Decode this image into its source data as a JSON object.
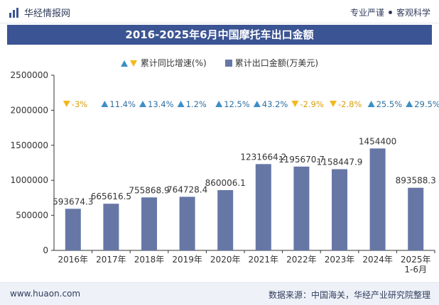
{
  "header": {
    "brand": "华经情报网",
    "tagline_left": "专业严谨",
    "tagline_right": "客观科学"
  },
  "title": "2016-2025年6月中国摩托车出口金额",
  "legend": {
    "growth_label": "累计同比增速(%)",
    "export_label": "累计出口金额(万美元)"
  },
  "footer": {
    "website": "www.huaon.com",
    "source": "数据来源：中国海关，华经产业研究院整理"
  },
  "colors": {
    "bar": "#6677a6",
    "up": "#3b8fc7",
    "down": "#f2b81d",
    "title_bg": "#3b5493"
  },
  "chart_data": {
    "type": "bar",
    "title": "2016-2025年6月中国摩托车出口金额",
    "categories": [
      "2016年",
      "2017年",
      "2018年",
      "2019年",
      "2020年",
      "2021年",
      "2022年",
      "2023年",
      "2024年",
      "2025年\n1-6月"
    ],
    "series": [
      {
        "name": "累计出口金额(万美元)",
        "values": [
          593674.3,
          665616.5,
          755868.9,
          764728.4,
          860006.1,
          1231664.2,
          1195670.7,
          1158447.9,
          1454400,
          893588.3
        ],
        "labels": [
          "593674.3",
          "665616.5",
          "755868.9",
          "764728.4",
          "860006.1",
          "1231664.2",
          "1195670.7",
          "1158447.9",
          "1454400",
          "893588.3"
        ]
      },
      {
        "name": "累计同比增速(%)",
        "values": [
          -3,
          11.4,
          13.4,
          1.2,
          12.5,
          43.2,
          -2.9,
          -2.8,
          25.5,
          29.5
        ],
        "labels": [
          "-3%",
          "11.4%",
          "13.4%",
          "1.2%",
          "12.5%",
          "43.2%",
          "-2.9%",
          "-2.8%",
          "25.5%",
          "29.5%"
        ]
      }
    ],
    "yticks": [
      "0",
      "500000",
      "1000000",
      "1500000",
      "2000000",
      "2500000"
    ],
    "ylim": [
      0,
      2500000
    ],
    "xlabel": "",
    "ylabel": ""
  }
}
